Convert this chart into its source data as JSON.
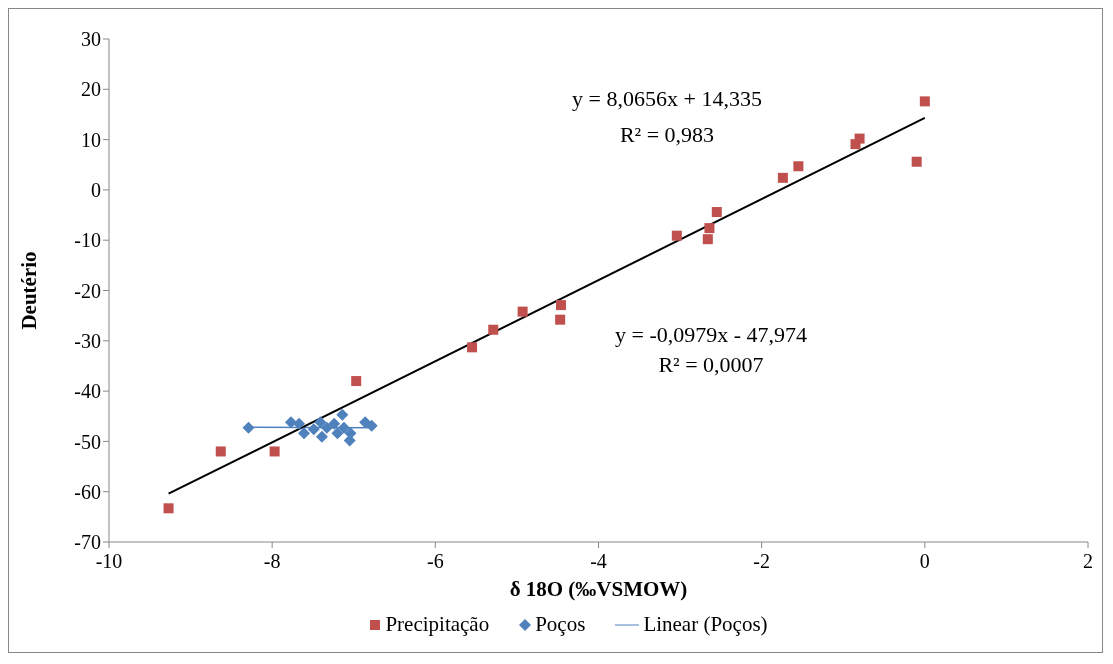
{
  "chart_data": {
    "type": "scatter",
    "xlabel": "δ 18O (‰VSMOW)",
    "ylabel": "Deutério",
    "xlim": [
      -10,
      2
    ],
    "xticks": [
      -10,
      -8,
      -6,
      -4,
      -2,
      0,
      2
    ],
    "ylim": [
      -70,
      30
    ],
    "yticks": [
      -70,
      -60,
      -50,
      -40,
      -30,
      -20,
      -10,
      0,
      10,
      20,
      30
    ],
    "grid": false,
    "legend": "bottom",
    "series": [
      {
        "name": "Precipitação",
        "marker": "square",
        "color": "#c0504d",
        "x": [
          -9.27,
          -8.63,
          -7.97,
          -6.97,
          -5.55,
          -5.29,
          -4.93,
          -4.46,
          -4.47,
          -3.04,
          -2.64,
          -2.66,
          -2.55,
          -1.74,
          -1.55,
          -0.85,
          -0.8,
          0.0,
          -0.1
        ],
        "values": [
          -63.3,
          -52,
          -52,
          -38,
          -31.3,
          -27.8,
          -24.2,
          -22.9,
          -25.8,
          -9.1,
          -7.6,
          -9.8,
          -4.4,
          2.4,
          4.7,
          9.1,
          10.2,
          17.6,
          5.6
        ]
      },
      {
        "name": "Poços",
        "marker": "diamond",
        "color": "#4f81bd",
        "x": [
          -8.29,
          -7.77,
          -7.67,
          -7.61,
          -7.49,
          -7.41,
          -7.39,
          -7.33,
          -7.24,
          -7.2,
          -7.14,
          -7.12,
          -7.05,
          -7.04,
          -6.86,
          -6.78
        ],
        "values": [
          -47.3,
          -46.2,
          -46.5,
          -48.4,
          -47.6,
          -46.2,
          -49.1,
          -47.3,
          -46.5,
          -48.4,
          -44.7,
          -47.3,
          -49.8,
          -48.4,
          -46.2,
          -46.9
        ]
      },
      {
        "name": "Linear (Poços)",
        "type": "line",
        "marker": "none",
        "line_style": "solid",
        "color": "#4f81bd",
        "x": [
          -8.29,
          -6.78
        ],
        "values": [
          -47.2,
          -47.3
        ]
      },
      {
        "type": "line",
        "marker": "none",
        "line_style": "solid",
        "color": "#000000",
        "x": [
          -9.27,
          0.0
        ],
        "values": [
          -60.4,
          14.3
        ]
      }
    ],
    "annotations": [
      "y = 8,0656x + 14,335",
      "R² = 0,983",
      "y = -0,0979x - 47,974",
      "R² = 0,0007"
    ]
  }
}
